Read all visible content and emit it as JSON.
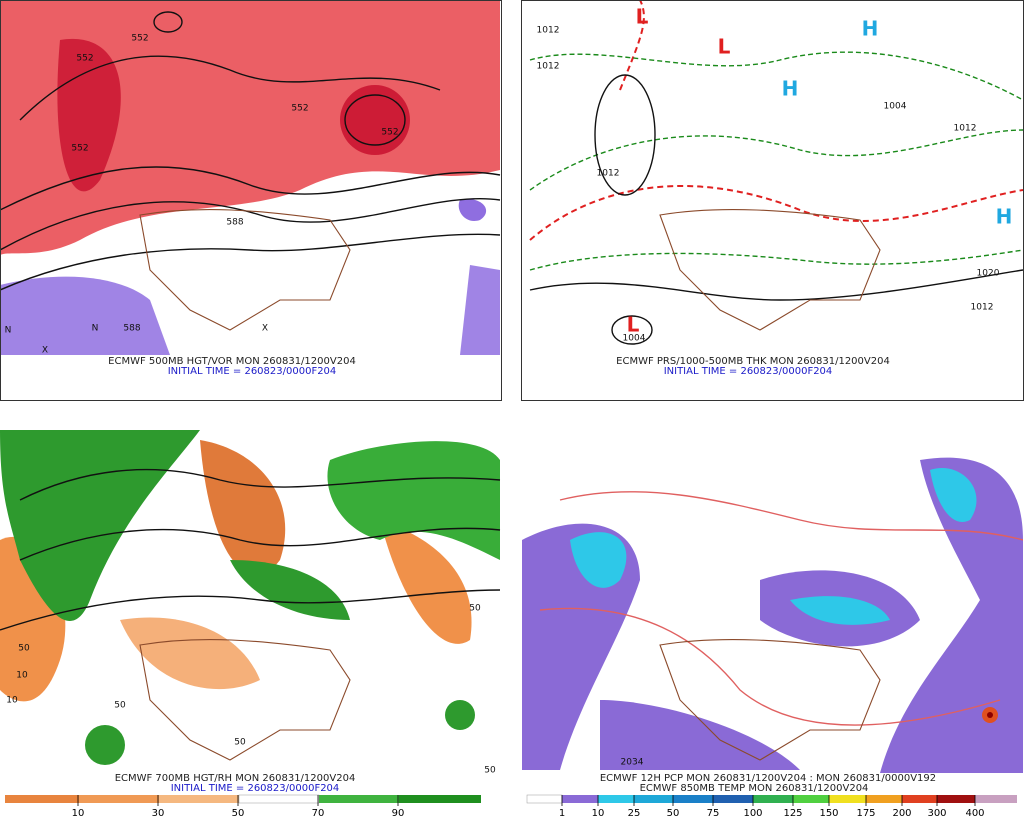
{
  "panels": [
    {
      "caption": "ECMWF 500MB HGT/VOR MON 260831/1200V204",
      "initial_time": "INITIAL TIME = 260823/0000F204",
      "map_labels": [
        "552",
        "552",
        "552",
        "552",
        "552",
        "588",
        "588",
        "N",
        "X",
        "N",
        "X"
      ]
    },
    {
      "caption": "ECMWF PRS/1000-500MB THK MON 260831/1200V204",
      "initial_time": "INITIAL TIME = 260823/0000F204",
      "map_labels": [
        "1012",
        "1012",
        "1012",
        "1012",
        "1012",
        "1020",
        "1004",
        "1004",
        "L",
        "L",
        "L",
        "H",
        "H",
        "H"
      ]
    },
    {
      "caption": "ECMWF 700MB HGT/RH MON 260831/1200V204",
      "initial_time": "INITIAL TIME = 260823/0000F204",
      "map_labels": [
        "50",
        "50",
        "50",
        "50",
        "10",
        "10",
        "50"
      ],
      "colorbar": [
        "10",
        "30",
        "50",
        "70",
        "90"
      ]
    },
    {
      "caption": "ECMWF 12H PCP MON 260831/1200V204 : MON 260831/0000V192",
      "caption2": "ECMWF 850MB TEMP MON 260831/1200V204",
      "map_labels": [
        "2034"
      ],
      "colorbar": [
        "1",
        "10",
        "25",
        "50",
        "75",
        "100",
        "125",
        "150",
        "175",
        "200",
        "300",
        "400"
      ]
    }
  ]
}
